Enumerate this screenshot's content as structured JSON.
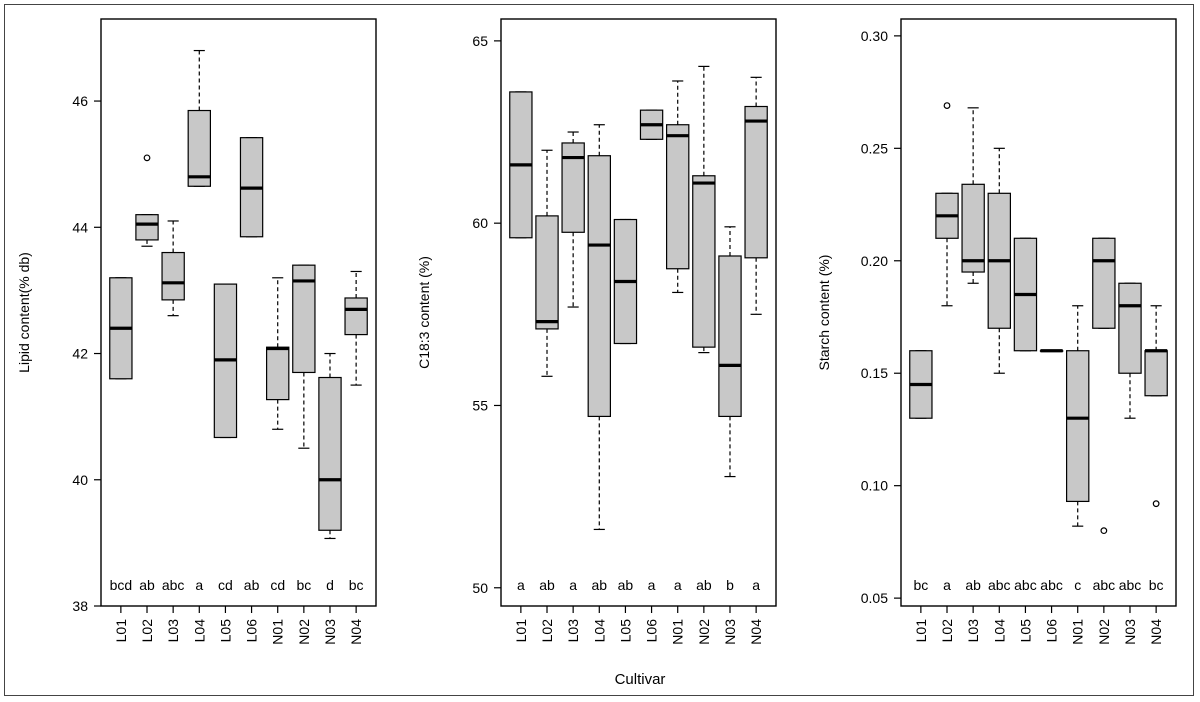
{
  "xlabel": "Cultivar",
  "colors": {
    "box_fill": "#c8c8c8",
    "stroke": "#000000"
  },
  "chart_data": [
    {
      "type": "boxplot",
      "ylabel": "Lipid content(% db)",
      "categories": [
        "L01",
        "L02",
        "L03",
        "L04",
        "L05",
        "L06",
        "N01",
        "N02",
        "N03",
        "N04"
      ],
      "ylim": [
        38,
        47.3
      ],
      "yticks": [
        38,
        40,
        42,
        44,
        46
      ],
      "tick_labels": [
        "38",
        "40",
        "42",
        "44",
        "46"
      ],
      "letters": [
        "bcd",
        "ab",
        "abc",
        "a",
        "cd",
        "ab",
        "cd",
        "bc",
        "d",
        "bc"
      ],
      "boxes": [
        {
          "q1": 41.6,
          "median": 42.4,
          "q3": 43.2,
          "whislo": 41.6,
          "whishi": 43.2,
          "outliers": []
        },
        {
          "q1": 43.8,
          "median": 44.05,
          "q3": 44.2,
          "whislo": 43.7,
          "whishi": 44.2,
          "outliers": [
            45.1
          ]
        },
        {
          "q1": 42.85,
          "median": 43.12,
          "q3": 43.6,
          "whislo": 42.6,
          "whishi": 44.1,
          "outliers": []
        },
        {
          "q1": 44.65,
          "median": 44.8,
          "q3": 45.85,
          "whislo": 44.65,
          "whishi": 46.8,
          "outliers": []
        },
        {
          "q1": 40.67,
          "median": 41.9,
          "q3": 43.1,
          "whislo": 40.67,
          "whishi": 43.1,
          "outliers": []
        },
        {
          "q1": 43.85,
          "median": 44.62,
          "q3": 45.42,
          "whislo": 43.85,
          "whishi": 45.42,
          "outliers": []
        },
        {
          "q1": 41.27,
          "median": 42.08,
          "q3": 42.1,
          "whislo": 40.8,
          "whishi": 43.2,
          "outliers": []
        },
        {
          "q1": 41.7,
          "median": 43.15,
          "q3": 43.4,
          "whislo": 40.5,
          "whishi": 43.4,
          "outliers": []
        },
        {
          "q1": 39.2,
          "median": 40.0,
          "q3": 41.62,
          "whislo": 39.07,
          "whishi": 42.0,
          "outliers": []
        },
        {
          "q1": 42.3,
          "median": 42.7,
          "q3": 42.88,
          "whislo": 41.5,
          "whishi": 43.3,
          "outliers": []
        }
      ]
    },
    {
      "type": "boxplot",
      "ylabel": "C18:3 content (%)",
      "categories": [
        "L01",
        "L02",
        "L03",
        "L04",
        "L05",
        "L06",
        "N01",
        "N02",
        "N03",
        "N04"
      ],
      "ylim": [
        49.5,
        65.6
      ],
      "yticks": [
        50,
        55,
        60,
        65
      ],
      "tick_labels": [
        "50",
        "55",
        "60",
        "65"
      ],
      "letters": [
        "a",
        "ab",
        "a",
        "ab",
        "ab",
        "a",
        "a",
        "ab",
        "b",
        "a"
      ],
      "boxes": [
        {
          "q1": 59.6,
          "median": 61.6,
          "q3": 63.6,
          "whislo": 59.6,
          "whishi": 63.6,
          "outliers": []
        },
        {
          "q1": 57.1,
          "median": 57.3,
          "q3": 60.2,
          "whislo": 55.8,
          "whishi": 62.0,
          "outliers": []
        },
        {
          "q1": 59.75,
          "median": 61.8,
          "q3": 62.2,
          "whislo": 57.7,
          "whishi": 62.5,
          "outliers": []
        },
        {
          "q1": 54.7,
          "median": 59.4,
          "q3": 61.85,
          "whislo": 51.6,
          "whishi": 62.7,
          "outliers": []
        },
        {
          "q1": 56.7,
          "median": 58.4,
          "q3": 60.1,
          "whislo": 56.7,
          "whishi": 60.1,
          "outliers": []
        },
        {
          "q1": 62.3,
          "median": 62.7,
          "q3": 63.1,
          "whislo": 62.3,
          "whishi": 63.1,
          "outliers": []
        },
        {
          "q1": 58.75,
          "median": 62.4,
          "q3": 62.7,
          "whislo": 58.1,
          "whishi": 63.9,
          "outliers": []
        },
        {
          "q1": 56.6,
          "median": 61.1,
          "q3": 61.3,
          "whislo": 56.45,
          "whishi": 64.3,
          "outliers": []
        },
        {
          "q1": 54.7,
          "median": 56.1,
          "q3": 59.1,
          "whislo": 53.05,
          "whishi": 59.9,
          "outliers": []
        },
        {
          "q1": 59.05,
          "median": 62.8,
          "q3": 63.2,
          "whislo": 57.5,
          "whishi": 64.0,
          "outliers": []
        }
      ]
    },
    {
      "type": "boxplot",
      "ylabel": "Starch content (%)",
      "categories": [
        "L01",
        "L02",
        "L03",
        "L04",
        "L05",
        "L06",
        "N01",
        "N02",
        "N03",
        "N04"
      ],
      "ylim": [
        0.0465,
        0.3075
      ],
      "yticks": [
        0.05,
        0.1,
        0.15,
        0.2,
        0.25,
        0.3
      ],
      "tick_labels": [
        "0.05",
        "0.10",
        "0.15",
        "0.20",
        "0.25",
        "0.30"
      ],
      "letters": [
        "bc",
        "a",
        "ab",
        "abc",
        "abc",
        "abc",
        "c",
        "abc",
        "abc",
        "bc"
      ],
      "boxes": [
        {
          "q1": 0.13,
          "median": 0.145,
          "q3": 0.16,
          "whislo": 0.13,
          "whishi": 0.16,
          "outliers": []
        },
        {
          "q1": 0.21,
          "median": 0.22,
          "q3": 0.23,
          "whislo": 0.18,
          "whishi": 0.23,
          "outliers": [
            0.269
          ]
        },
        {
          "q1": 0.195,
          "median": 0.2,
          "q3": 0.234,
          "whislo": 0.19,
          "whishi": 0.268,
          "outliers": []
        },
        {
          "q1": 0.17,
          "median": 0.2,
          "q3": 0.23,
          "whislo": 0.15,
          "whishi": 0.25,
          "outliers": []
        },
        {
          "q1": 0.16,
          "median": 0.185,
          "q3": 0.21,
          "whislo": 0.16,
          "whishi": 0.21,
          "outliers": []
        },
        {
          "q1": 0.16,
          "median": 0.16,
          "q3": 0.16,
          "whislo": 0.16,
          "whishi": 0.16,
          "outliers": []
        },
        {
          "q1": 0.093,
          "median": 0.13,
          "q3": 0.16,
          "whislo": 0.082,
          "whishi": 0.18,
          "outliers": []
        },
        {
          "q1": 0.17,
          "median": 0.2,
          "q3": 0.21,
          "whislo": 0.17,
          "whishi": 0.21,
          "outliers": [
            0.08
          ]
        },
        {
          "q1": 0.15,
          "median": 0.18,
          "q3": 0.19,
          "whislo": 0.13,
          "whishi": 0.19,
          "outliers": []
        },
        {
          "q1": 0.14,
          "median": 0.16,
          "q3": 0.16,
          "whislo": 0.14,
          "whishi": 0.18,
          "outliers": [
            0.092
          ]
        }
      ]
    }
  ]
}
